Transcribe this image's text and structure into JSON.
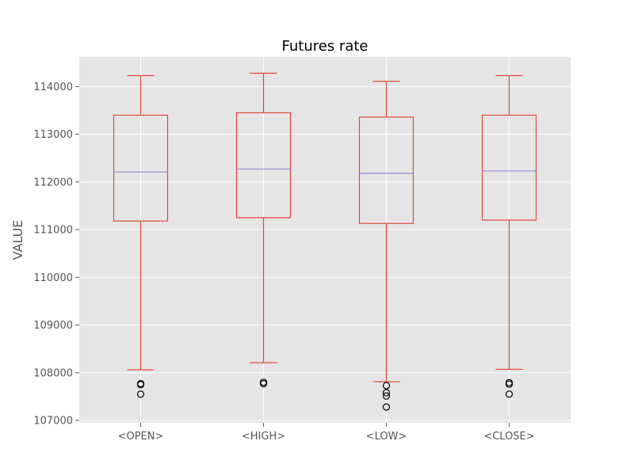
{
  "chart_data": {
    "type": "box",
    "title": "Futures rate",
    "xlabel": "",
    "ylabel": "VALUE",
    "ylim": [
      106950,
      114620
    ],
    "yticks": [
      107000,
      108000,
      109000,
      110000,
      111000,
      112000,
      113000,
      114000
    ],
    "grid": true,
    "style": {
      "plot_bg": "#e5e5e5",
      "grid_color": "#ffffff",
      "box_color": "#e24a33",
      "median_color": "#8e8ad6",
      "flier_color": "#000000"
    },
    "categories": [
      "<OPEN>",
      "<HIGH>",
      "<LOW>",
      "<CLOSE>"
    ],
    "boxes": [
      {
        "label": "<OPEN>",
        "whislo": 108060,
        "q1": 111180,
        "med": 112210,
        "q3": 113400,
        "whishi": 114230,
        "fliers": [
          107770,
          107750,
          107550
        ]
      },
      {
        "label": "<HIGH>",
        "whislo": 108210,
        "q1": 111250,
        "med": 112270,
        "q3": 113450,
        "whishi": 114280,
        "fliers": [
          107800,
          107770
        ]
      },
      {
        "label": "<LOW>",
        "whislo": 107810,
        "q1": 111130,
        "med": 112180,
        "q3": 113360,
        "whishi": 114110,
        "fliers": [
          107730,
          107580,
          107510,
          107280
        ]
      },
      {
        "label": "<CLOSE>",
        "whislo": 108070,
        "q1": 111200,
        "med": 112230,
        "q3": 113400,
        "whishi": 114230,
        "fliers": [
          107790,
          107760,
          107550
        ]
      }
    ]
  }
}
